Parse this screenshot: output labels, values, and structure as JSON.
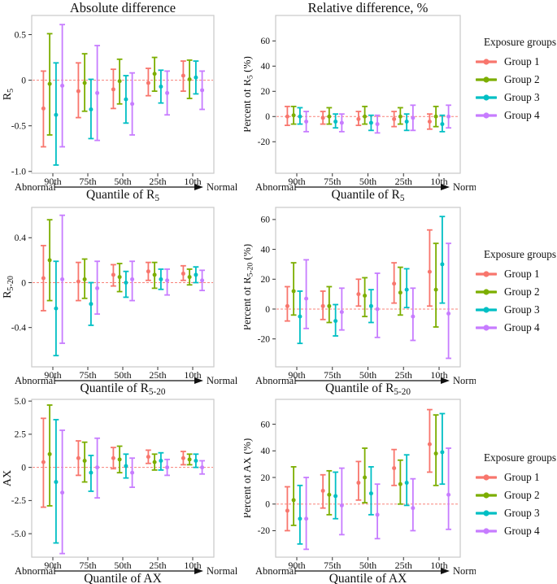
{
  "figure": {
    "column_titles": [
      "Absolute difference",
      "Relative difference, %"
    ],
    "x_categories": [
      "90th",
      "75th",
      "50th",
      "25th",
      "10th"
    ],
    "x_left_annotation": "Abnormal",
    "x_right_annotation": "Normal",
    "legend": {
      "title": "Exposure groups",
      "items": [
        {
          "label": "Group 1",
          "color": "#F8766D"
        },
        {
          "label": "Group 2",
          "color": "#7CAE00"
        },
        {
          "label": "Group 3",
          "color": "#00BFC4"
        },
        {
          "label": "Group 4",
          "color": "#C77CFF"
        }
      ]
    },
    "styles": {
      "zero_line_color": "#F8766D",
      "panel_border_color": "#c9c9c9",
      "text_color": "#111111",
      "tick_color": "#333333"
    }
  },
  "chart_data": [
    {
      "id": "r5-absolute",
      "type": "pointrange",
      "row": 0,
      "col": 0,
      "title": "Absolute difference",
      "ylabel": "R_{5}",
      "xlabel": "Quantile of R_{5}",
      "ylim": [
        -1.02,
        0.71
      ],
      "yticks": [
        0.5,
        0,
        -0.5,
        -1.0
      ],
      "ytick_labels": [
        "0.5",
        "0",
        "-0.5",
        "-1.0"
      ],
      "zero_line": 0,
      "legend_position": "right",
      "grid": false,
      "categories": [
        "90th",
        "75th",
        "50th",
        "25th",
        "10th"
      ],
      "series": [
        {
          "name": "Group 1",
          "points": [
            [
              -0.31,
              -0.73,
              0.1
            ],
            [
              -0.12,
              -0.41,
              0.19
            ],
            [
              -0.1,
              -0.31,
              0.12
            ],
            [
              -0.03,
              -0.17,
              0.13
            ],
            [
              0.05,
              -0.12,
              0.21
            ]
          ]
        },
        {
          "name": "Group 2",
          "points": [
            [
              -0.04,
              -0.6,
              0.51
            ],
            [
              -0.03,
              -0.34,
              0.29
            ],
            [
              -0.01,
              -0.26,
              0.23
            ],
            [
              0.07,
              -0.12,
              0.25
            ],
            [
              0.01,
              -0.2,
              0.22
            ]
          ]
        },
        {
          "name": "Group 3",
          "points": [
            [
              -0.38,
              -0.93,
              0.19
            ],
            [
              -0.32,
              -0.64,
              0.01
            ],
            [
              -0.21,
              -0.47,
              0.05
            ],
            [
              -0.07,
              -0.25,
              0.11
            ],
            [
              0.03,
              -0.15,
              0.21
            ]
          ]
        },
        {
          "name": "Group 4",
          "points": [
            [
              -0.06,
              -0.73,
              0.61
            ],
            [
              -0.14,
              -0.66,
              0.38
            ],
            [
              -0.26,
              -0.6,
              0.08
            ],
            [
              -0.14,
              -0.38,
              0.1
            ],
            [
              -0.11,
              -0.32,
              0.1
            ]
          ]
        }
      ]
    },
    {
      "id": "r5-relative",
      "type": "pointrange",
      "row": 0,
      "col": 1,
      "title": "Relative difference, %",
      "ylabel": "Percent of R_{5} (%)",
      "xlabel": "Quantile of R_{5}",
      "ylim": [
        -45,
        80.2
      ],
      "yticks": [
        60,
        40,
        20,
        0,
        -20
      ],
      "ytick_labels": [
        "60",
        "40",
        "20",
        "0",
        "-20"
      ],
      "zero_line": 0,
      "legend_position": "right",
      "grid": false,
      "categories": [
        "90th",
        "75th",
        "50th",
        "25th",
        "10th"
      ],
      "series": [
        {
          "name": "Group 1",
          "points": [
            [
              0,
              -7,
              8
            ],
            [
              -1,
              -6,
              4
            ],
            [
              -2,
              -7,
              4
            ],
            [
              -2,
              -8,
              4
            ],
            [
              -4,
              -10,
              2
            ]
          ]
        },
        {
          "name": "Group 2",
          "points": [
            [
              1,
              -6,
              8
            ],
            [
              0,
              -6,
              7
            ],
            [
              0,
              -6,
              8
            ],
            [
              0,
              -6,
              7
            ],
            [
              0,
              -8,
              8
            ]
          ]
        },
        {
          "name": "Group 3",
          "points": [
            [
              0,
              -6,
              7
            ],
            [
              -4,
              -9,
              2
            ],
            [
              -5,
              -11,
              1
            ],
            [
              -4,
              -11,
              2
            ],
            [
              -6,
              -12,
              1
            ]
          ]
        },
        {
          "name": "Group 4",
          "points": [
            [
              -4,
              -12,
              4
            ],
            [
              -5,
              -12,
              2
            ],
            [
              -6,
              -13,
              1
            ],
            [
              -1,
              -11,
              9
            ],
            [
              0,
              -9,
              9
            ]
          ]
        }
      ]
    },
    {
      "id": "r5-20-absolute",
      "type": "pointrange",
      "row": 1,
      "col": 0,
      "title": "",
      "ylabel": "R_{5-20}",
      "xlabel": "Quantile of R_{5-20}",
      "ylim": [
        -0.75,
        0.67
      ],
      "yticks": [
        0.4,
        0,
        -0.4
      ],
      "ytick_labels": [
        "0.4",
        "0",
        "-0.4"
      ],
      "zero_line": 0,
      "legend_position": "right",
      "grid": false,
      "categories": [
        "90th",
        "75th",
        "50th",
        "25th",
        "10th"
      ],
      "series": [
        {
          "name": "Group 1",
          "points": [
            [
              0.04,
              -0.25,
              0.33
            ],
            [
              0.01,
              -0.16,
              0.18
            ],
            [
              0.07,
              -0.03,
              0.16
            ],
            [
              0.1,
              0.02,
              0.18
            ],
            [
              0.08,
              0.02,
              0.15
            ]
          ]
        },
        {
          "name": "Group 2",
          "points": [
            [
              0.2,
              -0.16,
              0.56
            ],
            [
              0.03,
              -0.14,
              0.21
            ],
            [
              0.05,
              -0.08,
              0.17
            ],
            [
              0.07,
              -0.05,
              0.18
            ],
            [
              0.05,
              -0.02,
              0.12
            ]
          ]
        },
        {
          "name": "Group 3",
          "points": [
            [
              -0.23,
              -0.65,
              0.19
            ],
            [
              -0.19,
              -0.38,
              0.0
            ],
            [
              0.0,
              -0.13,
              0.1
            ],
            [
              0.03,
              -0.06,
              0.12
            ],
            [
              0.07,
              0.0,
              0.14
            ]
          ]
        },
        {
          "name": "Group 4",
          "points": [
            [
              0.03,
              -0.54,
              0.6
            ],
            [
              -0.05,
              -0.28,
              0.19
            ],
            [
              0.03,
              -0.16,
              0.19
            ],
            [
              0.02,
              -0.11,
              0.12
            ],
            [
              0.02,
              -0.07,
              0.11
            ]
          ]
        }
      ]
    },
    {
      "id": "r5-20-relative",
      "type": "pointrange",
      "row": 1,
      "col": 1,
      "title": "",
      "ylabel": "Percent of R_{5-20} (%)",
      "xlabel": "Quantile of R_{5-20}",
      "ylim": [
        -38.7,
        68.1
      ],
      "yticks": [
        60,
        40,
        20,
        0,
        -20
      ],
      "ytick_labels": [
        "60",
        "40",
        "20",
        "0",
        "-20"
      ],
      "zero_line": 0,
      "legend_position": "right",
      "grid": false,
      "categories": [
        "90th",
        "75th",
        "50th",
        "25th",
        "10th"
      ],
      "series": [
        {
          "name": "Group 1",
          "points": [
            [
              2,
              -8,
              15
            ],
            [
              2,
              -7,
              12
            ],
            [
              10,
              2,
              20
            ],
            [
              17,
              4,
              31
            ],
            [
              25,
              2,
              53
            ]
          ]
        },
        {
          "name": "Group 2",
          "points": [
            [
              12,
              -4,
              31
            ],
            [
              2,
              -9,
              15
            ],
            [
              9,
              -5,
              21
            ],
            [
              11,
              -4,
              28
            ],
            [
              13,
              -12,
              44
            ]
          ]
        },
        {
          "name": "Group 3",
          "points": [
            [
              -5,
              -23,
              12
            ],
            [
              -8,
              -18,
              3
            ],
            [
              2,
              -9,
              13
            ],
            [
              13,
              1,
              27
            ],
            [
              30,
              4,
              62
            ]
          ]
        },
        {
          "name": "Group 4",
          "points": [
            [
              7,
              -13,
              33
            ],
            [
              -2,
              -14,
              14
            ],
            [
              0,
              -19,
              24
            ],
            [
              -5,
              -21,
              14
            ],
            [
              -3,
              -33,
              44
            ]
          ]
        }
      ]
    },
    {
      "id": "ax-absolute",
      "type": "pointrange",
      "row": 2,
      "col": 0,
      "title": "",
      "ylabel": "AX",
      "xlabel": "Quantile of AX",
      "ylim": [
        -6.77,
        5.13
      ],
      "yticks": [
        5.0,
        2.5,
        0,
        -2.5,
        -5.0
      ],
      "ytick_labels": [
        "5.0",
        "2.5",
        "0",
        "-2.5",
        "-5.0"
      ],
      "zero_line": 0,
      "legend_position": "right",
      "grid": false,
      "categories": [
        "90th",
        "75th",
        "50th",
        "25th",
        "10th"
      ],
      "series": [
        {
          "name": "Group 1",
          "points": [
            [
              0.4,
              -3.0,
              3.7
            ],
            [
              0.7,
              -0.6,
              2.0
            ],
            [
              0.7,
              -0.1,
              1.5
            ],
            [
              0.8,
              0.3,
              1.3
            ],
            [
              0.7,
              0.2,
              1.2
            ]
          ]
        },
        {
          "name": "Group 2",
          "points": [
            [
              1.0,
              -2.9,
              4.7
            ],
            [
              0.5,
              -1.1,
              1.9
            ],
            [
              0.6,
              -0.4,
              1.6
            ],
            [
              0.4,
              -0.2,
              1.0
            ],
            [
              0.6,
              0.2,
              1.0
            ]
          ]
        },
        {
          "name": "Group 3",
          "points": [
            [
              -1.1,
              -5.7,
              3.6
            ],
            [
              -0.4,
              -1.8,
              0.9
            ],
            [
              0.1,
              -0.8,
              1.0
            ],
            [
              0.5,
              -0.2,
              1.1
            ],
            [
              0.5,
              0.0,
              1.0
            ]
          ]
        },
        {
          "name": "Group 4",
          "points": [
            [
              -1.9,
              -6.5,
              2.8
            ],
            [
              0.0,
              -2.3,
              2.2
            ],
            [
              -0.4,
              -1.5,
              0.7
            ],
            [
              0.0,
              -0.6,
              0.6
            ],
            [
              0.0,
              -0.5,
              0.5
            ]
          ]
        }
      ]
    },
    {
      "id": "ax-relative",
      "type": "pointrange",
      "row": 2,
      "col": 1,
      "title": "",
      "ylabel": "Percent of AX (%)",
      "xlabel": "Quantile of AX",
      "ylim": [
        -39.9,
        78.7
      ],
      "yticks": [
        60,
        40,
        20,
        0,
        -20
      ],
      "ytick_labels": [
        "60",
        "40",
        "20",
        "0",
        "-20"
      ],
      "zero_line": 0,
      "legend_position": "right",
      "grid": false,
      "categories": [
        "90th",
        "75th",
        "50th",
        "25th",
        "10th"
      ],
      "series": [
        {
          "name": "Group 1",
          "points": [
            [
              -5,
              -20,
              13
            ],
            [
              10,
              -3,
              22
            ],
            [
              16,
              3,
              32
            ],
            [
              27,
              14,
              41
            ],
            [
              45,
              24,
              71
            ]
          ]
        },
        {
          "name": "Group 2",
          "points": [
            [
              3,
              -16,
              28
            ],
            [
              7,
              -8,
              25
            ],
            [
              20,
              1,
              42
            ],
            [
              15,
              0,
              33
            ],
            [
              38,
              14,
              67
            ]
          ]
        },
        {
          "name": "Group 3",
          "points": [
            [
              -11,
              -30,
              14
            ],
            [
              6,
              -11,
              24
            ],
            [
              8,
              -8,
              28
            ],
            [
              16,
              -1,
              37
            ],
            [
              39,
              15,
              68
            ]
          ]
        },
        {
          "name": "Group 4",
          "points": [
            [
              -11,
              -34,
              20
            ],
            [
              -1,
              -23,
              27
            ],
            [
              -8,
              -26,
              15
            ],
            [
              -3,
              -20,
              19
            ],
            [
              7,
              -19,
              42
            ]
          ]
        }
      ]
    }
  ]
}
